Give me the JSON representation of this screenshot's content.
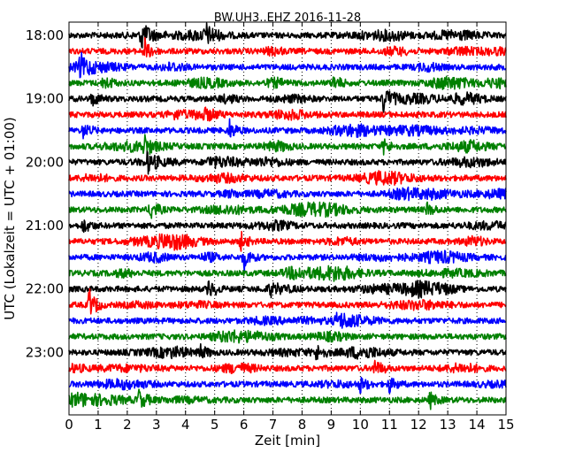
{
  "chart_data": {
    "type": "line",
    "title": "BW.UH3..EHZ 2016-11-28",
    "xlabel": "Zeit  [min]",
    "ylabel": "UTC (Lokalzeit = UTC + 01:00)",
    "xlim": [
      0,
      15
    ],
    "x_ticks": [
      "0",
      "1",
      "2",
      "3",
      "4",
      "5",
      "6",
      "7",
      "8",
      "9",
      "10",
      "11",
      "12",
      "13",
      "14",
      "15"
    ],
    "y_ticks": [
      {
        "label": "18:00",
        "row": 0
      },
      {
        "label": "19:00",
        "row": 4
      },
      {
        "label": "20:00",
        "row": 8
      },
      {
        "label": "21:00",
        "row": 12
      },
      {
        "label": "22:00",
        "row": 16
      },
      {
        "label": "23:00",
        "row": 20
      }
    ],
    "grid": "vertical-dotted",
    "row_colors": [
      "#000000",
      "#ff0000",
      "#0000ff",
      "#008000"
    ],
    "trace_rows": 24,
    "minutes_per_row": 15,
    "events": [
      {
        "row": 0,
        "minute": 2.5,
        "amp": 3.0
      },
      {
        "row": 0,
        "minute": 4.7,
        "amp": 2.0
      },
      {
        "row": 1,
        "minute": 2.6,
        "amp": 2.2
      },
      {
        "row": 2,
        "minute": 0.4,
        "amp": 2.0
      },
      {
        "row": 3,
        "minute": 1.2,
        "amp": 1.8
      },
      {
        "row": 3,
        "minute": 9.1,
        "amp": 1.5
      },
      {
        "row": 4,
        "minute": 10.8,
        "amp": 3.0
      },
      {
        "row": 4,
        "minute": 0.8,
        "amp": 1.5
      },
      {
        "row": 6,
        "minute": 5.5,
        "amp": 2.0
      },
      {
        "row": 6,
        "minute": 0.5,
        "amp": 1.5
      },
      {
        "row": 7,
        "minute": 2.6,
        "amp": 1.5
      },
      {
        "row": 7,
        "minute": 10.8,
        "amp": 1.5
      },
      {
        "row": 8,
        "minute": 2.7,
        "amp": 1.8
      },
      {
        "row": 8,
        "minute": 4.8,
        "amp": 1.2
      },
      {
        "row": 11,
        "minute": 2.8,
        "amp": 2.0
      },
      {
        "row": 11,
        "minute": 12.3,
        "amp": 1.4
      },
      {
        "row": 12,
        "minute": 0.5,
        "amp": 1.5
      },
      {
        "row": 13,
        "minute": 5.9,
        "amp": 1.5
      },
      {
        "row": 14,
        "minute": 6.0,
        "amp": 2.3
      },
      {
        "row": 16,
        "minute": 4.8,
        "amp": 2.2
      },
      {
        "row": 16,
        "minute": 6.9,
        "amp": 1.2
      },
      {
        "row": 17,
        "minute": 0.7,
        "amp": 3.0
      },
      {
        "row": 18,
        "minute": 9.2,
        "amp": 1.8
      },
      {
        "row": 20,
        "minute": 4.5,
        "amp": 1.5
      },
      {
        "row": 20,
        "minute": 8.5,
        "amp": 1.5
      },
      {
        "row": 21,
        "minute": 10.5,
        "amp": 2.0
      },
      {
        "row": 22,
        "minute": 11.0,
        "amp": 1.6
      },
      {
        "row": 22,
        "minute": 10.0,
        "amp": 1.4
      },
      {
        "row": 23,
        "minute": 2.4,
        "amp": 2.2
      },
      {
        "row": 23,
        "minute": 12.4,
        "amp": 1.4
      }
    ]
  }
}
